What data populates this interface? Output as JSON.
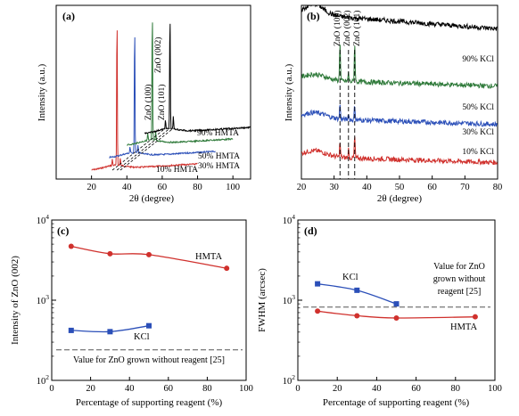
{
  "figure": {
    "panels": [
      {
        "id": "a",
        "label": "(a)"
      },
      {
        "id": "b",
        "label": "(b)"
      },
      {
        "id": "c",
        "label": "(c)"
      },
      {
        "id": "d",
        "label": "(d)"
      }
    ]
  },
  "chart_data": [
    {
      "panel": "a",
      "type": "line",
      "style": "waterfall-xrd",
      "xlabel": "2θ (degree)",
      "ylabel": "Intensity (a.u.)",
      "xticks": [
        20,
        40,
        60,
        80,
        100
      ],
      "yticks": [],
      "peak_labels": [
        "ZnO (002)",
        "ZnO (100)",
        "ZnO (101)"
      ],
      "peak_positions_deg": {
        "ZnO (100)": 31.8,
        "ZnO (002)": 34.4,
        "ZnO (101)": 36.3
      },
      "series": [
        {
          "name": "10% HMTA",
          "color": "#d0312d",
          "x_range": [
            20,
            80
          ],
          "offset_deg": 0,
          "peak_heights": [
            0.04,
            1.0,
            0.05
          ]
        },
        {
          "name": "30% HMTA",
          "color": "#2b4fb8",
          "x_range": [
            20,
            80
          ],
          "offset_deg": 10,
          "peak_heights": [
            0.04,
            0.85,
            0.05
          ]
        },
        {
          "name": "50% HMTA",
          "color": "#2f7a3a",
          "x_range": [
            20,
            80
          ],
          "offset_deg": 20,
          "peak_heights": [
            0.05,
            0.87,
            0.06
          ]
        },
        {
          "name": "90% HMTA",
          "color": "#000000",
          "x_range": [
            20,
            80
          ],
          "offset_deg": 30,
          "peak_heights": [
            0.06,
            0.78,
            0.08
          ]
        }
      ]
    },
    {
      "panel": "b",
      "type": "line",
      "style": "stacked-xrd",
      "xlabel": "2θ (degree)",
      "ylabel": "Intensity (a.u.)",
      "xlim": [
        20,
        80
      ],
      "xticks": [
        20,
        30,
        40,
        50,
        60,
        70,
        80
      ],
      "yticks": [],
      "peak_labels": [
        "ZnO (100)",
        "ZnO (002)",
        "ZnO (101)"
      ],
      "peak_positions_deg": [
        31.8,
        34.4,
        36.3
      ],
      "series": [
        {
          "name": "10% KCl",
          "color": "#d0312d",
          "baseline": 0.13,
          "peak_heights": [
            0.09,
            0.05,
            0.13
          ]
        },
        {
          "name": "30% KCl",
          "color": "#2b4fb8",
          "baseline": 0.35,
          "peak_heights": [
            0.09,
            0.04,
            0.09
          ]
        },
        {
          "name": "50% KCl",
          "color": "#2f7a3a",
          "baseline": 0.57,
          "peak_heights": [
            0.23,
            0.05,
            0.22
          ]
        },
        {
          "name": "90% KCl",
          "color": "#000000",
          "baseline": 0.95,
          "peak_heights": [
            0,
            0,
            0
          ]
        }
      ]
    },
    {
      "panel": "c",
      "type": "line",
      "xlabel": "Percentage of supporting reagent (%)",
      "ylabel": "Intensity of ZnO (002)",
      "yscale": "log",
      "ylim": [
        100,
        10000
      ],
      "xlim": [
        0,
        100
      ],
      "xticks": [
        0,
        20,
        40,
        60,
        80,
        100
      ],
      "series": [
        {
          "name": "HMTA",
          "color": "#d0312d",
          "marker": "circle",
          "x": [
            10,
            30,
            50,
            90
          ],
          "y": [
            4700,
            3800,
            3700,
            2500
          ]
        },
        {
          "name": "KCl",
          "color": "#2b4fb8",
          "marker": "square",
          "x": [
            10,
            30,
            50
          ],
          "y": [
            420,
            405,
            480
          ]
        }
      ],
      "reference": {
        "value": 240,
        "label": "Value for ZnO grown without reagent [25]"
      }
    },
    {
      "panel": "d",
      "type": "line",
      "xlabel": "Percentage of supporting reagent (%)",
      "ylabel": "FWHM (arcsec)",
      "yscale": "log",
      "ylim": [
        100,
        10000
      ],
      "xlim": [
        0,
        100
      ],
      "xticks": [
        0,
        20,
        40,
        60,
        80,
        100
      ],
      "series": [
        {
          "name": "KCl",
          "color": "#2b4fb8",
          "marker": "square",
          "x": [
            10,
            30,
            50
          ],
          "y": [
            1600,
            1330,
            900
          ]
        },
        {
          "name": "HMTA",
          "color": "#d0312d",
          "marker": "circle",
          "x": [
            10,
            30,
            50,
            90
          ],
          "y": [
            730,
            640,
            600,
            620
          ]
        }
      ],
      "reference": {
        "value": 820,
        "label_lines": [
          "Value for ZnO",
          "grown without",
          "reagent [25]"
        ]
      }
    }
  ]
}
